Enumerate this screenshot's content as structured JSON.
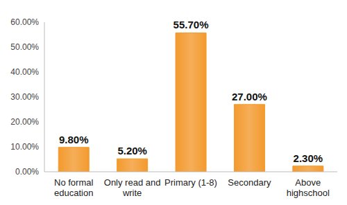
{
  "chart_data": {
    "type": "bar",
    "categories": [
      "No formal education",
      "Only read and write",
      "Primary (1-8)",
      "Secondary",
      "Above highschool"
    ],
    "values": [
      9.8,
      5.2,
      55.7,
      27.0,
      2.3
    ],
    "value_labels": [
      "9.80%",
      "5.20%",
      "55.70%",
      "27.00%",
      "2.30%"
    ],
    "color": "#F39A2E",
    "ylim": [
      0,
      60
    ],
    "yticks": [
      {
        "value": 0,
        "label": "0.00%"
      },
      {
        "value": 10,
        "label": "10.00%"
      },
      {
        "value": 20,
        "label": "20.00%"
      },
      {
        "value": 30,
        "label": "30.00%"
      },
      {
        "value": 40,
        "label": "40.00%"
      },
      {
        "value": 50,
        "label": "50.00%"
      },
      {
        "value": 60,
        "label": "60.00%"
      }
    ],
    "grid": false,
    "data_labels": true
  }
}
